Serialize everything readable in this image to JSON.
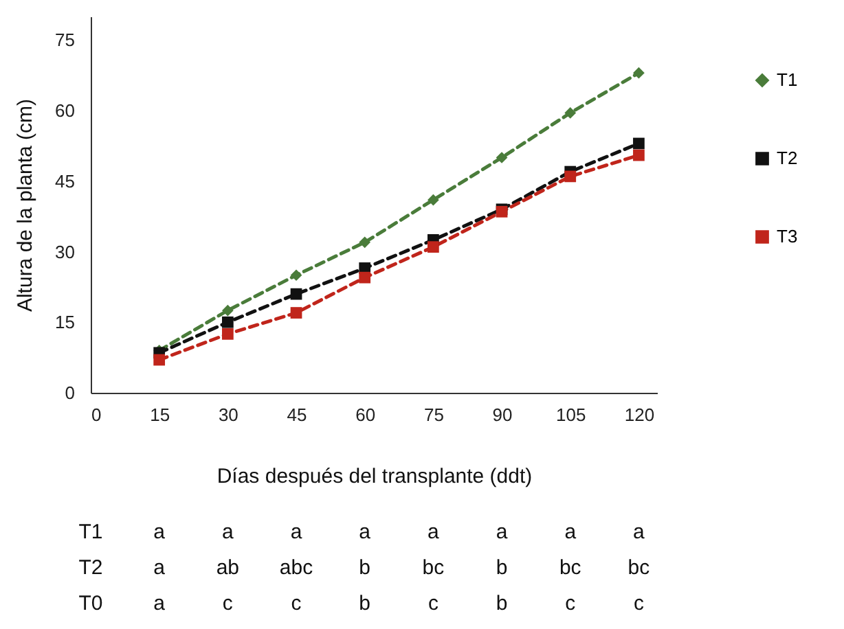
{
  "chart_data": {
    "type": "line",
    "xlabel": "Días después del transplante (ddt)",
    "ylabel": "Altura de la planta (cm)",
    "x": [
      15,
      30,
      45,
      60,
      75,
      90,
      105,
      120
    ],
    "series": [
      {
        "name": "T1",
        "color": "#4a7c3a",
        "marker": "diamond",
        "values": [
          9,
          17.5,
          25,
          32,
          41,
          50,
          59.5,
          68
        ]
      },
      {
        "name": "T2",
        "color": "#111111",
        "marker": "square",
        "values": [
          8.5,
          15,
          21,
          26.5,
          32.5,
          39,
          47,
          53
        ]
      },
      {
        "name": "T3",
        "color": "#c0251b",
        "marker": "square",
        "values": [
          7,
          12.5,
          17,
          24.5,
          31,
          38.5,
          46,
          50.5
        ]
      }
    ],
    "xlim": [
      0,
      124
    ],
    "xticks": [
      0,
      15,
      30,
      45,
      60,
      75,
      90,
      105,
      120
    ],
    "ylim": [
      0,
      80
    ],
    "yticks": [
      0,
      15,
      30,
      45,
      60,
      75
    ],
    "grid": false,
    "legend": "right",
    "line_style": "dashed",
    "annotations": [
      "T1",
      "a",
      "a",
      "a",
      "a",
      "a",
      "a",
      "a",
      "a",
      "T2",
      "a",
      "ab",
      "abc",
      "b",
      "bc",
      "b",
      "bc",
      "bc",
      "T0",
      "a",
      "c",
      "c",
      "b",
      "c",
      "b",
      "c",
      "c"
    ]
  }
}
